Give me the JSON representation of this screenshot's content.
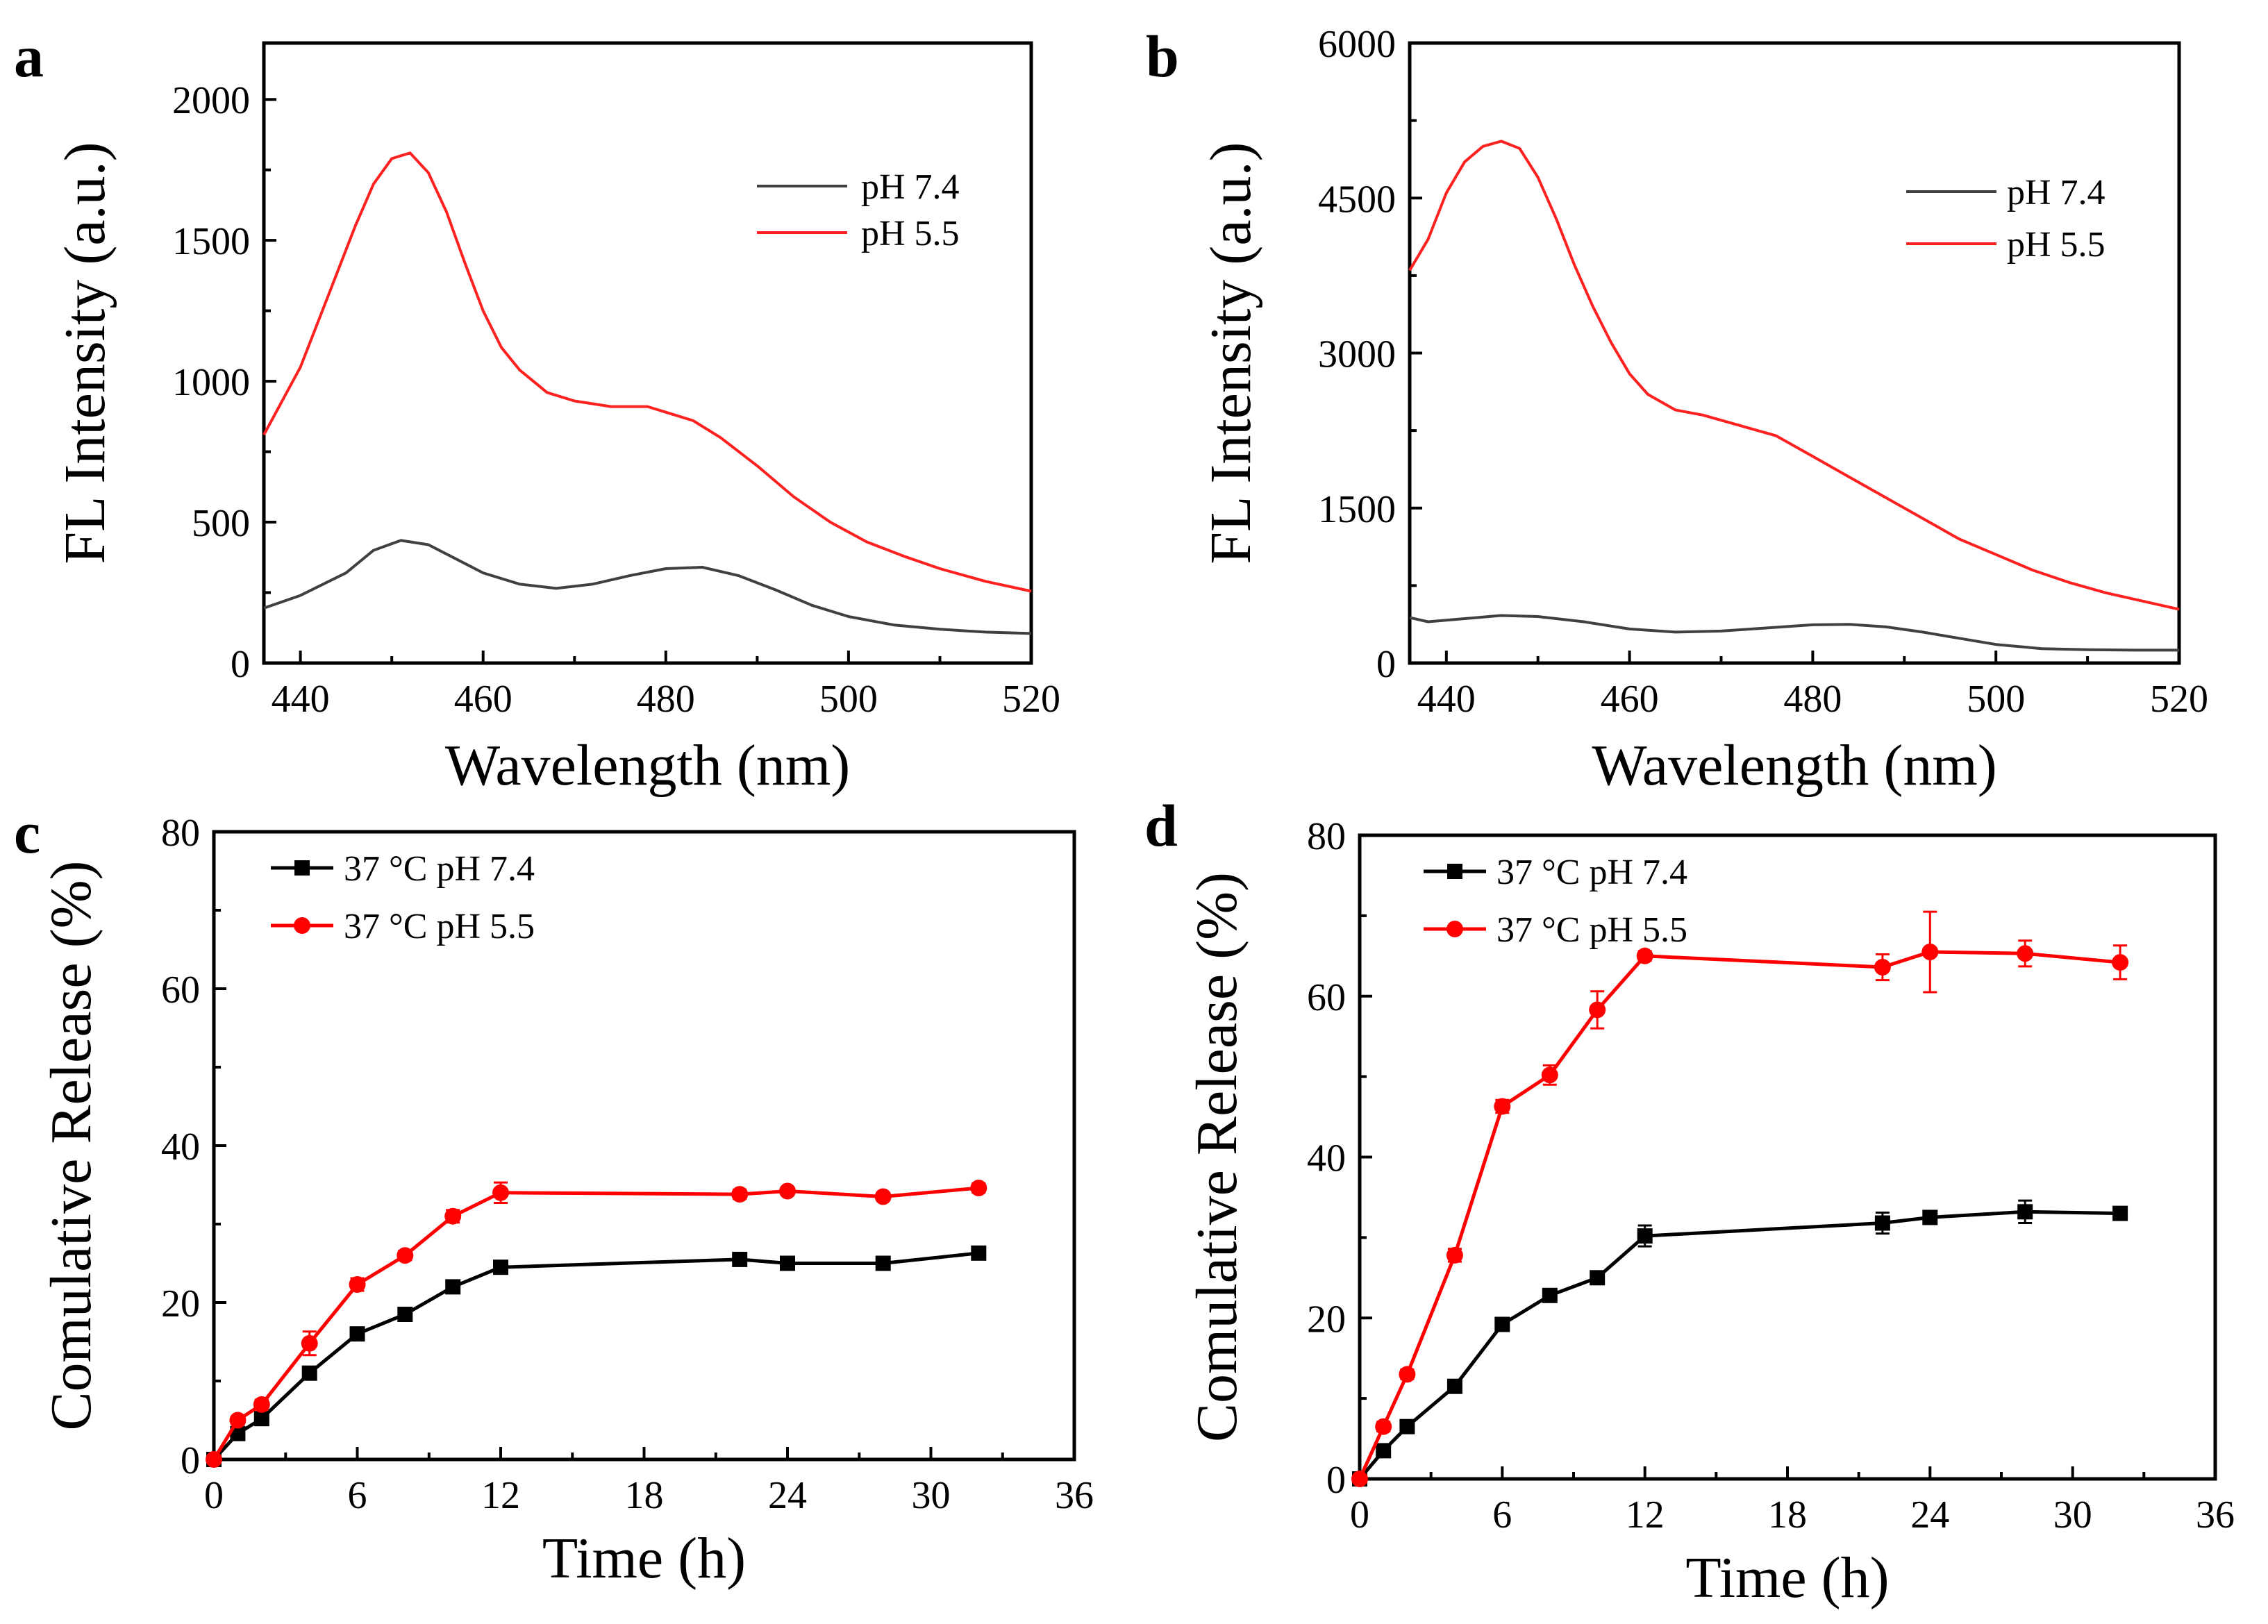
{
  "chart_data": [
    {
      "panel": "a",
      "type": "line",
      "xlabel": "Wavelength (nm)",
      "ylabel": "FL Intensity (a.u.)",
      "xlim": [
        436,
        520
      ],
      "ylim": [
        0,
        2200
      ],
      "xticks": [
        440,
        460,
        480,
        500,
        520
      ],
      "yticks": [
        0,
        500,
        1000,
        1500,
        2000
      ],
      "legend_position": "top-right",
      "series": [
        {
          "name": "pH 7.4",
          "color": "#404040",
          "x": [
            436,
            440,
            445,
            448,
            451,
            454,
            457,
            460,
            464,
            468,
            472,
            476,
            480,
            484,
            488,
            492,
            496,
            500,
            505,
            510,
            515,
            520
          ],
          "y": [
            195,
            240,
            320,
            400,
            435,
            420,
            370,
            320,
            280,
            265,
            280,
            310,
            335,
            340,
            310,
            260,
            205,
            165,
            135,
            120,
            110,
            105
          ]
        },
        {
          "name": "pH 5.5",
          "color": "#ff2020",
          "x": [
            436,
            440,
            443,
            446,
            448,
            450,
            452,
            454,
            456,
            458,
            460,
            462,
            464,
            467,
            470,
            474,
            478,
            480,
            483,
            486,
            490,
            494,
            498,
            502,
            506,
            510,
            515,
            520
          ],
          "y": [
            810,
            1050,
            1300,
            1550,
            1700,
            1790,
            1810,
            1740,
            1600,
            1420,
            1250,
            1120,
            1040,
            960,
            930,
            910,
            910,
            890,
            860,
            800,
            700,
            590,
            500,
            430,
            380,
            335,
            290,
            255
          ]
        }
      ]
    },
    {
      "panel": "b",
      "type": "line",
      "xlabel": "Wavelength (nm)",
      "ylabel": "FL Intensity (a.u.)",
      "xlim": [
        436,
        520
      ],
      "ylim": [
        0,
        6000
      ],
      "xticks": [
        440,
        460,
        480,
        500,
        520
      ],
      "yticks": [
        0,
        1500,
        3000,
        4500,
        6000
      ],
      "legend_position": "top-right",
      "series": [
        {
          "name": "pH 7.4",
          "color": "#404040",
          "x": [
            436,
            438,
            442,
            446,
            450,
            455,
            460,
            465,
            470,
            475,
            480,
            484,
            488,
            492,
            496,
            500,
            505,
            510,
            515,
            520
          ],
          "y": [
            440,
            400,
            430,
            460,
            450,
            400,
            330,
            300,
            310,
            340,
            370,
            375,
            350,
            300,
            240,
            180,
            140,
            130,
            125,
            125
          ]
        },
        {
          "name": "pH 5.5",
          "color": "#ff2020",
          "x": [
            436,
            438,
            440,
            442,
            444,
            446,
            448,
            450,
            452,
            454,
            456,
            458,
            460,
            462,
            465,
            468,
            472,
            476,
            480,
            484,
            488,
            492,
            496,
            500,
            504,
            508,
            512,
            516,
            520
          ],
          "y": [
            3800,
            4100,
            4550,
            4850,
            5000,
            5050,
            4980,
            4700,
            4300,
            3850,
            3450,
            3100,
            2800,
            2600,
            2450,
            2400,
            2300,
            2200,
            2000,
            1800,
            1600,
            1400,
            1200,
            1050,
            900,
            780,
            680,
            600,
            520
          ]
        }
      ]
    },
    {
      "panel": "c",
      "type": "line",
      "xlabel": "Time (h)",
      "ylabel": "Comulative Release (%)",
      "xlim": [
        0,
        36
      ],
      "ylim": [
        0,
        80
      ],
      "xticks": [
        0,
        6,
        12,
        18,
        24,
        30,
        36
      ],
      "yticks": [
        0,
        20,
        40,
        60,
        80
      ],
      "legend_position": "top-left",
      "series": [
        {
          "name": "37 °C pH 7.4",
          "marker": "square",
          "color": "#000000",
          "x": [
            0,
            1,
            2,
            4,
            6,
            8,
            10,
            12,
            22,
            24,
            28,
            32
          ],
          "y": [
            0,
            3.3,
            5.2,
            11,
            16,
            18.5,
            22,
            24.5,
            25.5,
            25,
            25,
            26.3
          ],
          "err": [
            0,
            0.4,
            0.4,
            0.8,
            0.5,
            0.6,
            0.6,
            0.8,
            0.5,
            0.4,
            0.4,
            0.5
          ]
        },
        {
          "name": "37 °C pH 5.5",
          "marker": "circle",
          "color": "#ff0000",
          "x": [
            0,
            1,
            2,
            4,
            6,
            8,
            10,
            12,
            22,
            24,
            28,
            32
          ],
          "y": [
            0,
            5,
            7,
            14.8,
            22.3,
            26,
            31,
            34,
            33.8,
            34.2,
            33.5,
            34.6
          ],
          "err": [
            0,
            0.5,
            0.6,
            1.5,
            0.8,
            0.6,
            0.8,
            1.3,
            0.6,
            0.5,
            0.5,
            0.6
          ]
        }
      ]
    },
    {
      "panel": "d",
      "type": "line",
      "xlabel": "Time (h)",
      "ylabel": "Comulative Release (%)",
      "xlim": [
        0,
        36
      ],
      "ylim": [
        0,
        80
      ],
      "xticks": [
        0,
        6,
        12,
        18,
        24,
        30,
        36
      ],
      "yticks": [
        0,
        20,
        40,
        60,
        80
      ],
      "legend_position": "top-left",
      "series": [
        {
          "name": "37 °C pH 7.4",
          "marker": "square",
          "color": "#000000",
          "x": [
            0,
            1,
            2,
            4,
            6,
            8,
            10,
            12,
            22,
            24,
            28,
            32
          ],
          "y": [
            0,
            3.5,
            6.5,
            11.5,
            19.2,
            22.8,
            25,
            30.2,
            31.8,
            32.5,
            33.2,
            33
          ],
          "err": [
            0,
            0.4,
            0.4,
            0.5,
            0.5,
            0.5,
            0.5,
            1.3,
            1.3,
            0.8,
            1.4,
            0.5
          ]
        },
        {
          "name": "37 °C pH 5.5",
          "marker": "circle",
          "color": "#ff0000",
          "x": [
            0,
            1,
            2,
            4,
            6,
            8,
            10,
            12,
            22,
            24,
            28,
            32
          ],
          "y": [
            0,
            6.5,
            13,
            27.8,
            46.3,
            50.2,
            58.3,
            65,
            63.6,
            65.5,
            65.3,
            64.2
          ],
          "err": [
            0,
            0.6,
            0.6,
            0.8,
            0.8,
            1.2,
            2.3,
            0.6,
            1.6,
            5,
            1.6,
            2.1
          ]
        }
      ]
    }
  ]
}
